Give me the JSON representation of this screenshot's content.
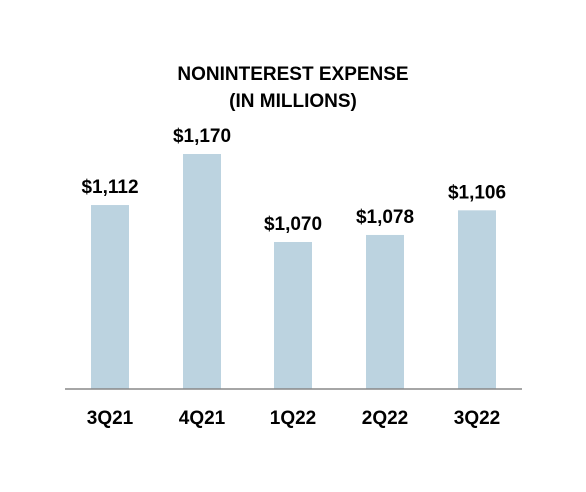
{
  "chart_data": {
    "type": "bar",
    "title": "NONINTEREST EXPENSE",
    "subtitle": "(IN MILLIONS)",
    "categories": [
      "3Q21",
      "4Q21",
      "1Q22",
      "2Q22",
      "3Q22"
    ],
    "values": [
      1112,
      1170,
      1070,
      1078,
      1106
    ],
    "data_labels": [
      "$1,112",
      "$1,170",
      "$1,070",
      "$1,078",
      "$1,106"
    ],
    "xlabel": "",
    "ylabel": "",
    "bar_color": "#bcd3e0",
    "axis_color": "#888888",
    "grid": false
  }
}
